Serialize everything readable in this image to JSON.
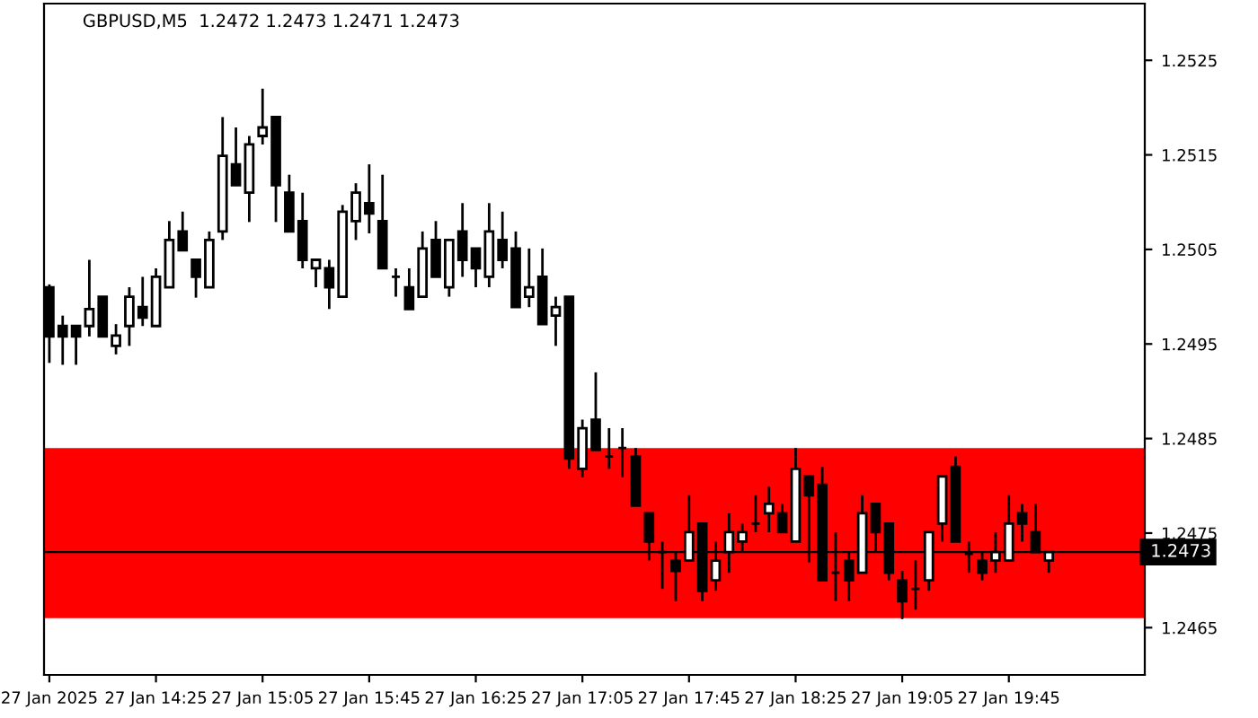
{
  "chart_data": {
    "type": "candlestick",
    "title": "GBPUSD,M5  1.2472 1.2473 1.2471 1.2473",
    "x": [
      "2025-01-27T13:45",
      "2025-01-27T13:50",
      "2025-01-27T13:55",
      "2025-01-27T14:00",
      "2025-01-27T14:05",
      "2025-01-27T14:10",
      "2025-01-27T14:15",
      "2025-01-27T14:20",
      "2025-01-27T14:25",
      "2025-01-27T14:30",
      "2025-01-27T14:35",
      "2025-01-27T14:40",
      "2025-01-27T14:45",
      "2025-01-27T14:50",
      "2025-01-27T14:55",
      "2025-01-27T15:00",
      "2025-01-27T15:05",
      "2025-01-27T15:10",
      "2025-01-27T15:15",
      "2025-01-27T15:20",
      "2025-01-27T15:25",
      "2025-01-27T15:30",
      "2025-01-27T15:35",
      "2025-01-27T15:40",
      "2025-01-27T15:45",
      "2025-01-27T15:50",
      "2025-01-27T15:55",
      "2025-01-27T16:00",
      "2025-01-27T16:05",
      "2025-01-27T16:10",
      "2025-01-27T16:15",
      "2025-01-27T16:20",
      "2025-01-27T16:25",
      "2025-01-27T16:30",
      "2025-01-27T16:35",
      "2025-01-27T16:40",
      "2025-01-27T16:45",
      "2025-01-27T16:50",
      "2025-01-27T16:55",
      "2025-01-27T17:00",
      "2025-01-27T17:05",
      "2025-01-27T17:10",
      "2025-01-27T17:15",
      "2025-01-27T17:20",
      "2025-01-27T17:25",
      "2025-01-27T17:30",
      "2025-01-27T17:35",
      "2025-01-27T17:40",
      "2025-01-27T17:45",
      "2025-01-27T17:50",
      "2025-01-27T17:55",
      "2025-01-27T18:00",
      "2025-01-27T18:05",
      "2025-01-27T18:10",
      "2025-01-27T18:15",
      "2025-01-27T18:20",
      "2025-01-27T18:25",
      "2025-01-27T18:30",
      "2025-01-27T18:35",
      "2025-01-27T18:40",
      "2025-01-27T18:45",
      "2025-01-27T18:50",
      "2025-01-27T18:55",
      "2025-01-27T19:00",
      "2025-01-27T19:05",
      "2025-01-27T19:10",
      "2025-01-27T19:15",
      "2025-01-27T19:20",
      "2025-01-27T19:25",
      "2025-01-27T19:30",
      "2025-01-27T19:35",
      "2025-01-27T19:40",
      "2025-01-27T19:45",
      "2025-01-27T19:50",
      "2025-01-27T19:55",
      "2025-01-27T20:00"
    ],
    "ohlc": [
      [
        1.2501,
        1.25013,
        1.2493,
        1.24958
      ],
      [
        1.24969,
        1.2498,
        1.24928,
        1.24958
      ],
      [
        1.24969,
        1.24969,
        1.24928,
        1.24958
      ],
      [
        1.24969,
        1.25039,
        1.24958,
        1.24987
      ],
      [
        1.25,
        1.25,
        1.24958,
        1.24958
      ],
      [
        1.24948,
        1.24971,
        1.24939,
        1.24959
      ],
      [
        1.24969,
        1.2501,
        1.24948,
        1.25
      ],
      [
        1.24989,
        1.25021,
        1.24969,
        1.24978
      ],
      [
        1.24969,
        1.2503,
        1.24969,
        1.25021
      ],
      [
        1.2501,
        1.2508,
        1.2501,
        1.2506
      ],
      [
        1.25069,
        1.2509,
        1.25049,
        1.25049
      ],
      [
        1.25039,
        1.25039,
        1.24999,
        1.25021
      ],
      [
        1.2501,
        1.25069,
        1.2501,
        1.2506
      ],
      [
        1.25069,
        1.2519,
        1.2506,
        1.25149
      ],
      [
        1.2514,
        1.25179,
        1.25118,
        1.25118
      ],
      [
        1.2511,
        1.2517,
        1.25079,
        1.25161
      ],
      [
        1.2517,
        1.2522,
        1.25161,
        1.25179
      ],
      [
        1.2519,
        1.2519,
        1.25079,
        1.25118
      ],
      [
        1.2511,
        1.25129,
        1.25069,
        1.25069
      ],
      [
        1.2508,
        1.2511,
        1.2503,
        1.25039
      ],
      [
        1.2503,
        1.25039,
        1.2501,
        1.25039
      ],
      [
        1.2503,
        1.25039,
        1.24987,
        1.2501
      ],
      [
        1.25,
        1.25097,
        1.25,
        1.2509
      ],
      [
        1.2508,
        1.2512,
        1.2506,
        1.2511
      ],
      [
        1.25099,
        1.2514,
        1.25067,
        1.25088
      ],
      [
        1.2508,
        1.25129,
        1.2503,
        1.2503
      ],
      [
        1.25021,
        1.2503,
        1.25,
        1.25021
      ],
      [
        1.2501,
        1.2503,
        1.24987,
        1.24987
      ],
      [
        1.25,
        1.25069,
        1.25,
        1.25051
      ],
      [
        1.2506,
        1.2508,
        1.25021,
        1.25021
      ],
      [
        1.2501,
        1.2506,
        1.25,
        1.2506
      ],
      [
        1.25069,
        1.25099,
        1.25021,
        1.25039
      ],
      [
        1.25051,
        1.25051,
        1.2501,
        1.2503
      ],
      [
        1.25021,
        1.25099,
        1.2501,
        1.25069
      ],
      [
        1.2506,
        1.2509,
        1.2503,
        1.25039
      ],
      [
        1.25051,
        1.25069,
        1.24989,
        1.24989
      ],
      [
        1.25,
        1.25051,
        1.24989,
        1.2501
      ],
      [
        1.25021,
        1.25051,
        1.24971,
        1.24971
      ],
      [
        1.2498,
        1.25,
        1.24948,
        1.24989
      ],
      [
        1.25,
        1.25,
        1.24818,
        1.24829
      ],
      [
        1.24818,
        1.2487,
        1.24809,
        1.24861
      ],
      [
        1.2487,
        1.2492,
        1.24838,
        1.24838
      ],
      [
        1.24831,
        1.24861,
        1.24818,
        1.24831
      ],
      [
        1.2484,
        1.24861,
        1.24809,
        1.2484
      ],
      [
        1.24831,
        1.2484,
        1.24779,
        1.24779
      ],
      [
        1.24771,
        1.24771,
        1.24721,
        1.24741
      ],
      [
        1.2473,
        1.24741,
        1.24691,
        1.2473
      ],
      [
        1.24721,
        1.2473,
        1.24678,
        1.2471
      ],
      [
        1.24721,
        1.2479,
        1.24721,
        1.24751
      ],
      [
        1.2476,
        1.2476,
        1.24678,
        1.24689
      ],
      [
        1.247,
        1.24741,
        1.24689,
        1.24721
      ],
      [
        1.2473,
        1.24771,
        1.24708,
        1.24751
      ],
      [
        1.24741,
        1.2476,
        1.2473,
        1.24751
      ],
      [
        1.2476,
        1.2479,
        1.24751,
        1.2476
      ],
      [
        1.24771,
        1.24799,
        1.24751,
        1.24781
      ],
      [
        1.24771,
        1.24781,
        1.24751,
        1.24751
      ],
      [
        1.24741,
        1.2484,
        1.24741,
        1.24818
      ],
      [
        1.2481,
        1.2481,
        1.24719,
        1.2479
      ],
      [
        1.24801,
        1.2482,
        1.247,
        1.247
      ],
      [
        1.24708,
        1.24751,
        1.24678,
        1.24708
      ],
      [
        1.24721,
        1.2473,
        1.24678,
        1.247
      ],
      [
        1.24708,
        1.2479,
        1.24708,
        1.24771
      ],
      [
        1.24781,
        1.24781,
        1.2473,
        1.24751
      ],
      [
        1.2476,
        1.2476,
        1.247,
        1.24708
      ],
      [
        1.247,
        1.2471,
        1.24659,
        1.24678
      ],
      [
        1.24691,
        1.24721,
        1.24669,
        1.24691
      ],
      [
        1.247,
        1.24751,
        1.24689,
        1.24751
      ],
      [
        1.2476,
        1.2481,
        1.24741,
        1.2481
      ],
      [
        1.2482,
        1.24831,
        1.24741,
        1.24741
      ],
      [
        1.24728,
        1.24741,
        1.24708,
        1.24728
      ],
      [
        1.24721,
        1.2473,
        1.247,
        1.24708
      ],
      [
        1.24721,
        1.24751,
        1.24708,
        1.2473
      ],
      [
        1.24721,
        1.2479,
        1.24721,
        1.2476
      ],
      [
        1.24771,
        1.24781,
        1.24741,
        1.2476
      ],
      [
        1.24751,
        1.24781,
        1.2473,
        1.2473
      ],
      [
        1.24721,
        1.2473,
        1.24708,
        1.2473
      ]
    ],
    "xlim": [
      "2025-01-27T13:43",
      "2025-01-27T20:36"
    ],
    "xticks": [
      {
        "value": "2025-01-27T13:45",
        "label": "27 Jan 2025"
      },
      {
        "value": "2025-01-27T14:25",
        "label": "27 Jan 14:25"
      },
      {
        "value": "2025-01-27T15:05",
        "label": "27 Jan 15:05"
      },
      {
        "value": "2025-01-27T15:45",
        "label": "27 Jan 15:45"
      },
      {
        "value": "2025-01-27T16:25",
        "label": "27 Jan 16:25"
      },
      {
        "value": "2025-01-27T17:05",
        "label": "27 Jan 17:05"
      },
      {
        "value": "2025-01-27T17:45",
        "label": "27 Jan 17:45"
      },
      {
        "value": "2025-01-27T18:25",
        "label": "27 Jan 18:25"
      },
      {
        "value": "2025-01-27T19:05",
        "label": "27 Jan 19:05"
      },
      {
        "value": "2025-01-27T19:45",
        "label": "27 Jan 19:45"
      }
    ],
    "ylim": [
      1.246,
      1.2531
    ],
    "yticks": [
      1.2465,
      1.2475,
      1.2485,
      1.2495,
      1.2505,
      1.2515,
      1.2525
    ],
    "ref_lines": [
      {
        "axis": "y",
        "value": 1.2473,
        "label": "1.2473",
        "color": "#000000"
      }
    ],
    "bands": [
      {
        "axis": "y",
        "from": 1.2466,
        "to": 1.2484,
        "color": "#ff0000"
      }
    ],
    "grid": false,
    "legend": false
  }
}
